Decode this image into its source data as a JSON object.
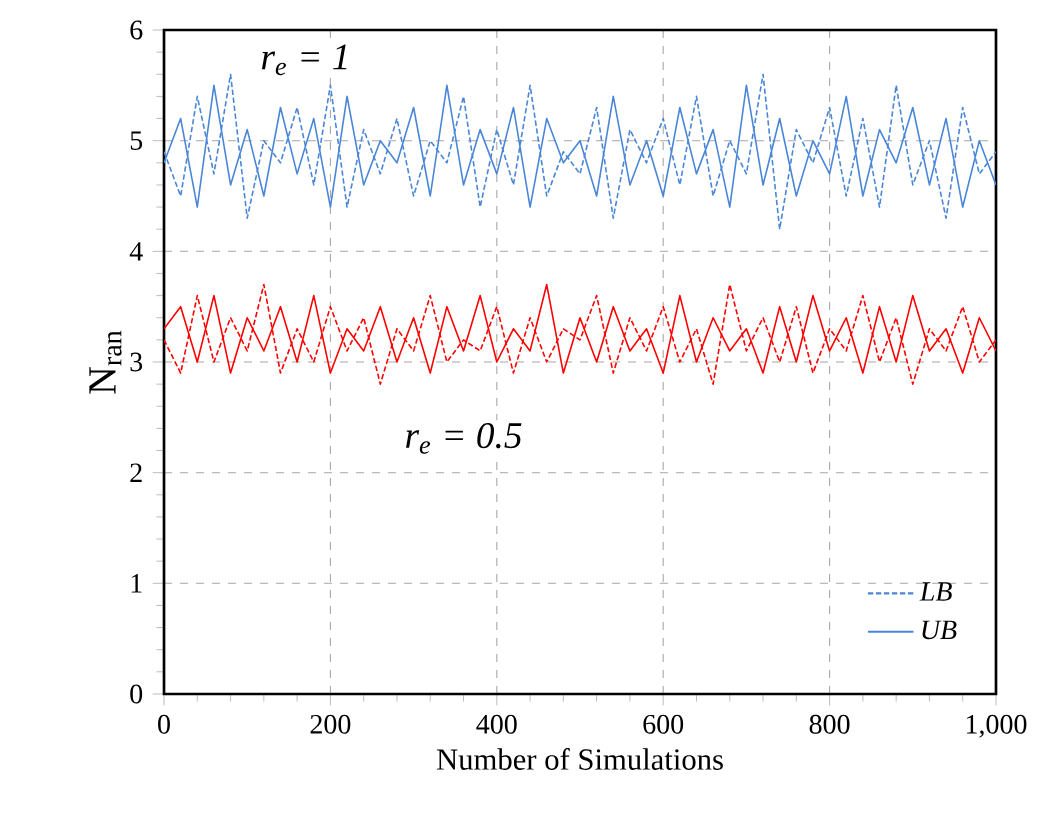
{
  "chart_data": {
    "type": "line",
    "xlabel": "Number of Simulations",
    "ylabel": "N$_{ran}$",
    "x": [
      0,
      20,
      40,
      60,
      80,
      100,
      120,
      140,
      160,
      180,
      200,
      220,
      240,
      260,
      280,
      300,
      320,
      340,
      360,
      380,
      400,
      420,
      440,
      460,
      480,
      500,
      520,
      540,
      560,
      580,
      600,
      620,
      640,
      660,
      680,
      700,
      720,
      740,
      760,
      780,
      800,
      820,
      840,
      860,
      880,
      900,
      920,
      940,
      960,
      980,
      1000
    ],
    "series": [
      {
        "name": "LB",
        "color": "#4a86d8",
        "line_style": "dashed",
        "values": [
          4.9,
          4.5,
          5.4,
          4.7,
          5.6,
          4.3,
          5.0,
          4.8,
          5.3,
          4.6,
          5.5,
          4.4,
          5.1,
          4.7,
          5.2,
          4.5,
          5.0,
          4.8,
          5.4,
          4.4,
          5.1,
          4.6,
          5.5,
          4.5,
          4.9,
          4.7,
          5.3,
          4.3,
          5.1,
          4.8,
          5.2,
          4.6,
          5.4,
          4.5,
          5.0,
          4.7,
          5.6,
          4.2,
          5.1,
          4.8,
          5.3,
          4.5,
          5.2,
          4.4,
          5.5,
          4.6,
          5.0,
          4.3,
          5.3,
          4.7,
          4.9
        ]
      },
      {
        "name": "UB",
        "color": "#4a86d8",
        "line_style": "solid",
        "values": [
          4.8,
          5.2,
          4.4,
          5.5,
          4.6,
          5.1,
          4.5,
          5.3,
          4.7,
          5.2,
          4.4,
          5.4,
          4.6,
          5.0,
          4.8,
          5.3,
          4.5,
          5.5,
          4.6,
          5.1,
          4.7,
          5.3,
          4.4,
          5.2,
          4.8,
          5.0,
          4.5,
          5.4,
          4.6,
          5.0,
          4.5,
          5.3,
          4.7,
          5.1,
          4.4,
          5.5,
          4.6,
          5.2,
          4.5,
          5.0,
          4.7,
          5.4,
          4.5,
          5.1,
          4.8,
          5.3,
          4.6,
          5.2,
          4.4,
          5.0,
          4.6
        ]
      },
      {
        "color": "#ff0000",
        "line_style": "dashed",
        "values": [
          3.2,
          2.9,
          3.6,
          3.0,
          3.4,
          3.1,
          3.7,
          2.9,
          3.3,
          3.0,
          3.5,
          3.1,
          3.4,
          2.8,
          3.3,
          3.1,
          3.6,
          3.0,
          3.2,
          3.1,
          3.5,
          2.9,
          3.4,
          3.0,
          3.3,
          3.2,
          3.6,
          2.9,
          3.4,
          3.1,
          3.5,
          3.0,
          3.3,
          2.8,
          3.7,
          3.1,
          3.4,
          3.0,
          3.5,
          2.9,
          3.3,
          3.1,
          3.6,
          3.0,
          3.4,
          2.8,
          3.3,
          3.1,
          3.5,
          3.0,
          3.2
        ]
      },
      {
        "color": "#ff0000",
        "line_style": "solid",
        "values": [
          3.3,
          3.5,
          3.0,
          3.6,
          2.9,
          3.4,
          3.1,
          3.5,
          3.0,
          3.6,
          2.9,
          3.3,
          3.1,
          3.5,
          3.0,
          3.4,
          2.9,
          3.5,
          3.1,
          3.6,
          3.0,
          3.3,
          3.1,
          3.7,
          2.9,
          3.4,
          3.0,
          3.5,
          3.1,
          3.3,
          2.9,
          3.6,
          3.0,
          3.4,
          3.1,
          3.3,
          2.9,
          3.5,
          3.0,
          3.6,
          3.1,
          3.4,
          2.9,
          3.5,
          3.0,
          3.6,
          3.1,
          3.3,
          2.9,
          3.4,
          3.1
        ]
      }
    ],
    "annotations": [
      "r$_{e}$ = 1",
      "r$_{e}$ = 0.5"
    ],
    "xlim": [
      0,
      1000
    ],
    "ylim": [
      0,
      6
    ],
    "xticks": [
      0,
      200,
      400,
      600,
      800,
      {
        "value": 1000,
        "label": "1,000"
      }
    ],
    "yticks": [
      0,
      1,
      2,
      3,
      4,
      5,
      6
    ],
    "grid": true,
    "legend": "bottom right",
    "marker": "none"
  }
}
